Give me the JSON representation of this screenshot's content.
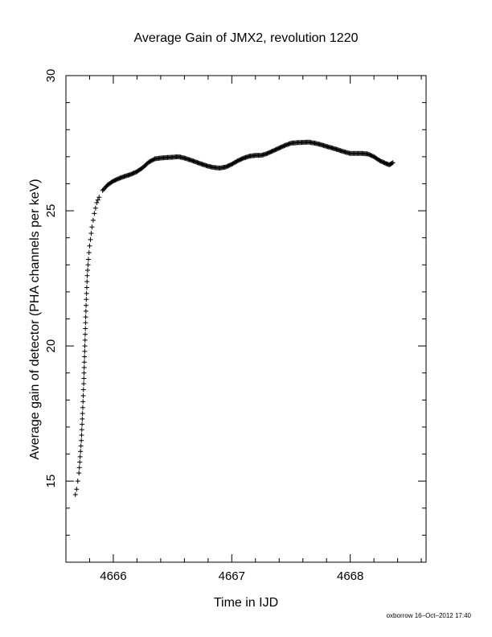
{
  "chart_data": {
    "type": "scatter",
    "title": "Average Gain of JMX2, revolution 1220",
    "xlabel": "Time in IJD",
    "ylabel": "Average gain of detector (PHA channels per keV)",
    "xlim": [
      4665.6,
      4668.64
    ],
    "ylim": [
      12,
      30
    ],
    "x_ticks": [
      4666,
      4667,
      4668
    ],
    "x_tick_labels": [
      "4666",
      "4667",
      "4668"
    ],
    "y_ticks": [
      15,
      20,
      25,
      30
    ],
    "y_tick_labels": [
      "15",
      "20",
      "25",
      "30"
    ],
    "marker": "plus",
    "marker_color": "#000000",
    "grid": false,
    "legend": "none",
    "curve": [
      [
        4665.68,
        14.5
      ],
      [
        4665.69,
        14.7
      ],
      [
        4665.7,
        15.0
      ],
      [
        4665.71,
        15.3
      ],
      [
        4665.72,
        15.9
      ],
      [
        4665.73,
        16.5
      ],
      [
        4665.74,
        17.5
      ],
      [
        4665.75,
        18.6
      ],
      [
        4665.76,
        20.0
      ],
      [
        4665.77,
        21.5
      ],
      [
        4665.78,
        22.6
      ],
      [
        4665.79,
        23.2
      ],
      [
        4665.8,
        23.7
      ],
      [
        4665.82,
        24.4
      ],
      [
        4665.84,
        24.9
      ],
      [
        4665.86,
        25.3
      ],
      [
        4665.88,
        25.5
      ],
      [
        4665.91,
        25.75
      ],
      [
        4665.95,
        25.95
      ],
      [
        4666.0,
        26.1
      ],
      [
        4666.05,
        26.2
      ],
      [
        4666.1,
        26.28
      ],
      [
        4666.15,
        26.35
      ],
      [
        4666.2,
        26.45
      ],
      [
        4666.25,
        26.6
      ],
      [
        4666.3,
        26.8
      ],
      [
        4666.35,
        26.92
      ],
      [
        4666.4,
        26.95
      ],
      [
        4666.45,
        26.97
      ],
      [
        4666.5,
        26.98
      ],
      [
        4666.55,
        27.0
      ],
      [
        4666.6,
        26.95
      ],
      [
        4666.65,
        26.88
      ],
      [
        4666.7,
        26.8
      ],
      [
        4666.75,
        26.72
      ],
      [
        4666.8,
        26.65
      ],
      [
        4666.85,
        26.6
      ],
      [
        4666.9,
        26.58
      ],
      [
        4666.95,
        26.62
      ],
      [
        4667.0,
        26.72
      ],
      [
        4667.05,
        26.85
      ],
      [
        4667.1,
        26.95
      ],
      [
        4667.15,
        27.02
      ],
      [
        4667.2,
        27.05
      ],
      [
        4667.25,
        27.05
      ],
      [
        4667.3,
        27.12
      ],
      [
        4667.35,
        27.22
      ],
      [
        4667.4,
        27.32
      ],
      [
        4667.45,
        27.42
      ],
      [
        4667.5,
        27.5
      ],
      [
        4667.55,
        27.52
      ],
      [
        4667.6,
        27.53
      ],
      [
        4667.65,
        27.54
      ],
      [
        4667.7,
        27.5
      ],
      [
        4667.75,
        27.45
      ],
      [
        4667.8,
        27.38
      ],
      [
        4667.85,
        27.32
      ],
      [
        4667.9,
        27.25
      ],
      [
        4667.95,
        27.18
      ],
      [
        4668.0,
        27.12
      ],
      [
        4668.05,
        27.12
      ],
      [
        4668.1,
        27.12
      ],
      [
        4668.15,
        27.1
      ],
      [
        4668.2,
        27.0
      ],
      [
        4668.25,
        26.85
      ],
      [
        4668.3,
        26.75
      ],
      [
        4668.33,
        26.7
      ],
      [
        4668.36,
        26.78
      ]
    ]
  },
  "footer": {
    "credit": "oxborrow 16–Oct–2012 17:40"
  }
}
